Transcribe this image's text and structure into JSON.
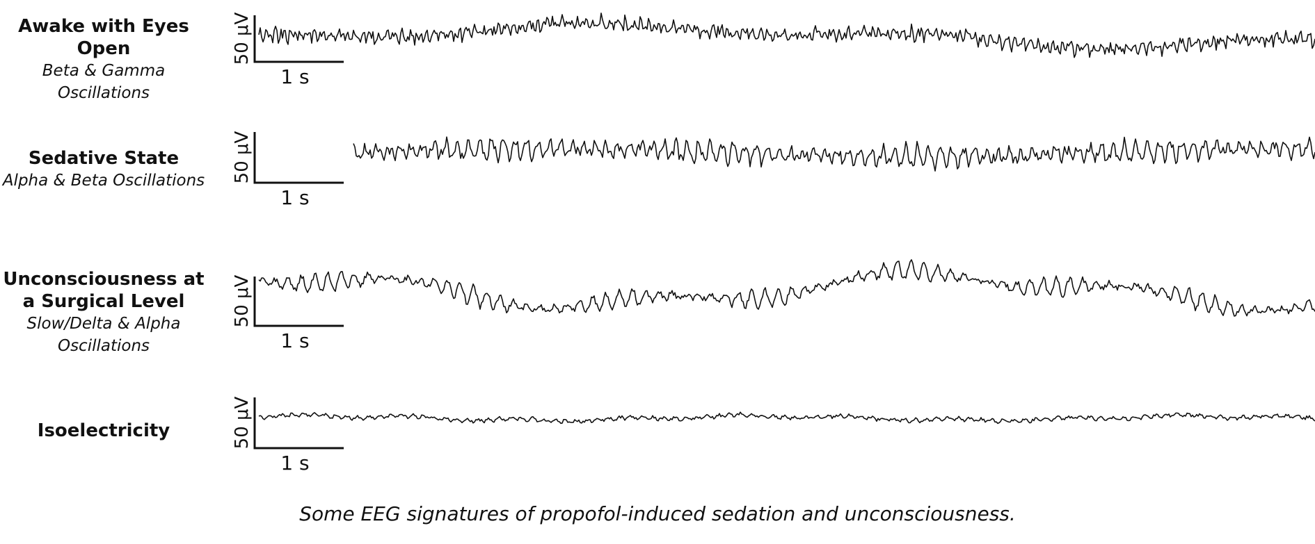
{
  "caption": "Some EEG signatures of propofol-induced sedation and unconsciousness.",
  "chart_data": [
    {
      "type": "line",
      "title": "Awake with Eyes Open",
      "subtitle": "Beta & Gamma Oscillations",
      "scale_bar": {
        "amplitude": "50 μV",
        "time": "1 s"
      },
      "signal": {
        "dominant_bands": [
          "beta",
          "gamma"
        ],
        "amplitude_level": "medium-low",
        "frequency": "fast"
      }
    },
    {
      "type": "line",
      "title": "Sedative State",
      "subtitle": "Alpha & Beta Oscillations",
      "scale_bar": {
        "amplitude": "50 μV",
        "time": "1 s"
      },
      "signal": {
        "dominant_bands": [
          "alpha",
          "beta"
        ],
        "amplitude_level": "medium",
        "frequency": "medium"
      }
    },
    {
      "type": "line",
      "title": "Unconsciousness at a Surgical Level",
      "subtitle": "Slow/Delta & Alpha Oscillations",
      "scale_bar": {
        "amplitude": "50 μV",
        "time": "1 s"
      },
      "signal": {
        "dominant_bands": [
          "slow",
          "delta",
          "alpha"
        ],
        "amplitude_level": "high",
        "frequency": "slow + medium"
      }
    },
    {
      "type": "line",
      "title": "Isoelectricity",
      "subtitle": "",
      "scale_bar": {
        "amplitude": "50 μV",
        "time": "1 s"
      },
      "signal": {
        "dominant_bands": [],
        "amplitude_level": "very low",
        "frequency": "flat"
      }
    }
  ]
}
